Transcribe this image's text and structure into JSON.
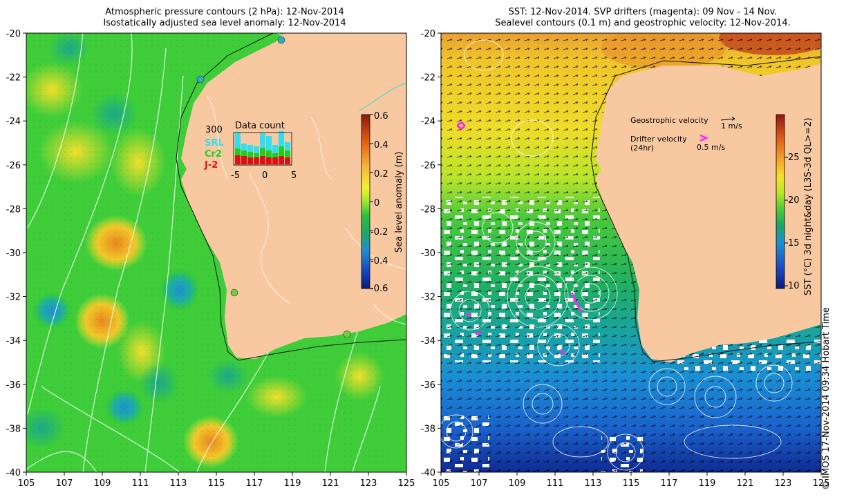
{
  "left_panel": {
    "title_line1": "Atmospheric pressure contours (2 hPa): 12-Nov-2014",
    "title_line2": "Isostatically adjusted sea level anomaly: 12-Nov-2014",
    "colorbar": {
      "label": "Sea level anomaly (m)",
      "ticks": [
        "0.6",
        "0.4",
        "0.2",
        "0",
        "-0.2",
        "-0.4",
        "-0.6"
      ],
      "colors": [
        "#8b1a0f",
        "#e05a10",
        "#f5b83a",
        "#f4f22c",
        "#9ee82d",
        "#2bc23a",
        "#1aa86a",
        "#1e8fd0",
        "#1646c0",
        "#0b1a7c"
      ]
    },
    "inset": {
      "title": "Data count",
      "y_tick": "300",
      "x_ticks": [
        "-5",
        "0",
        "5"
      ],
      "legend": [
        {
          "label": "SRL",
          "color": "#33ddee"
        },
        {
          "label": "Cr2",
          "color": "#22cc22"
        },
        {
          "label": "J-2",
          "color": "#dd1111"
        }
      ]
    }
  },
  "right_panel": {
    "title_line1": "SST: 12-Nov-2014. SVP drifters (magenta): 09 Nov - 14 Nov.",
    "title_line2": "Sealevel contours (0.1 m) and geostrophic velocity: 12-Nov-2014.",
    "colorbar": {
      "label": "SST (°C) 3d night&day (L3S-3d QL>=2)",
      "ticks": [
        "25",
        "20",
        "15",
        "10"
      ],
      "colors": [
        "#8b1a0f",
        "#d6541a",
        "#f29a2a",
        "#f4e12c",
        "#b8e62a",
        "#49c93a",
        "#18a46e",
        "#1a8fd4",
        "#1a4bc4",
        "#0b1a7c"
      ]
    },
    "legend": {
      "geostrophic_label": "Geostrophic velocity",
      "geostrophic_scale": "1 m/s",
      "drifter_label": "Drifter velocity",
      "drifter_sub": "(24hr)",
      "drifter_scale": "0.5 m/s",
      "drifter_color": "#ff22ff"
    }
  },
  "axes": {
    "lon_ticks": [
      "105",
      "107",
      "109",
      "111",
      "113",
      "115",
      "117",
      "119",
      "121",
      "123",
      "125"
    ],
    "lat_ticks": [
      "-20",
      "-22",
      "-24",
      "-26",
      "-28",
      "-30",
      "-32",
      "-34",
      "-36",
      "-38",
      "-40"
    ]
  },
  "credit": "© IMOS 17-Nov-2014 09:34 Hobart Time",
  "colors": {
    "land": "#f8c8a0",
    "ocean_green": "#3fce3a",
    "coast_cyan": "#22dddd"
  }
}
